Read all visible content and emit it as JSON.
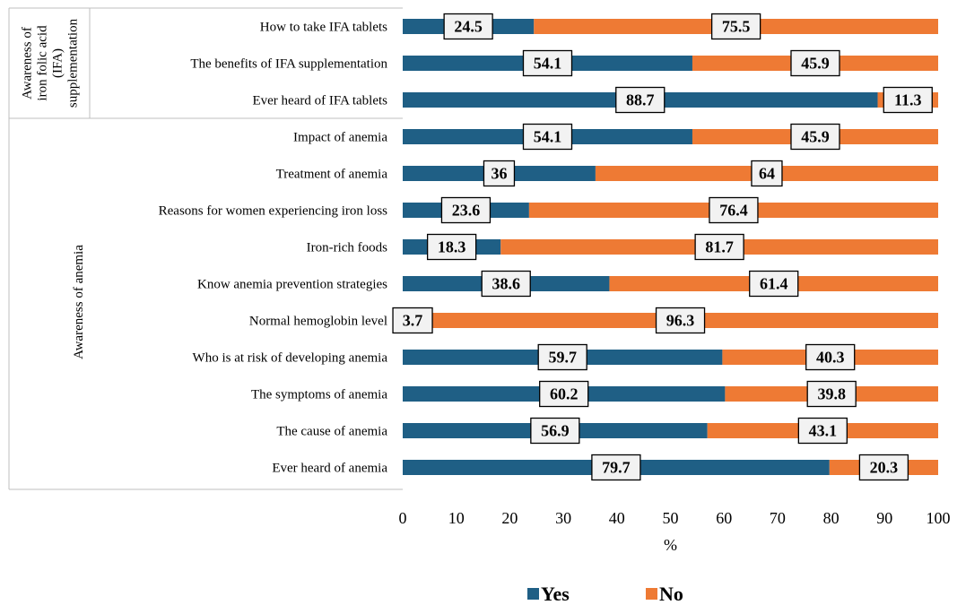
{
  "chart_data": {
    "type": "bar",
    "orientation": "horizontal",
    "stacked": true,
    "title": "",
    "xlabel": "%",
    "xlim": [
      0,
      100
    ],
    "xticks": [
      "0",
      "10",
      "20",
      "30",
      "40",
      "50",
      "60",
      "70",
      "80",
      "90",
      "100"
    ],
    "grid": false,
    "legend_position": "bottom",
    "groups": [
      {
        "label": "Awareness of iron folic acid (IFA) supplementation",
        "lines": [
          "Awareness of",
          "iron folic acid",
          "(IFA)",
          "supplementation"
        ]
      },
      {
        "label": "Awareness of anemia",
        "lines": [
          "Awareness of anemia"
        ]
      }
    ],
    "categories": [
      "How to take IFA tablets",
      "The benefits of IFA supplementation",
      "Ever heard of IFA tablets",
      "Impact of anemia ",
      "Treatment of anemia",
      "Reasons for women experiencing iron loss",
      "Iron-rich foods",
      "Know anemia prevention strategies",
      "Normal hemoglobin level",
      "Who is at risk of developing anemia",
      "The symptoms of anemia ",
      "The cause of anemia",
      "Ever heard of anemia"
    ],
    "series": [
      {
        "name": "Yes",
        "color": "#1f5f85",
        "values": [
          24.5,
          54.1,
          88.7,
          54.1,
          36,
          23.6,
          18.3,
          38.6,
          3.7,
          59.7,
          60.2,
          56.9,
          79.7
        ]
      },
      {
        "name": "No",
        "color": "#ee7a34",
        "values": [
          75.5,
          45.9,
          11.3,
          45.9,
          64,
          76.4,
          81.7,
          61.4,
          96.3,
          40.3,
          39.8,
          43.1,
          20.3
        ]
      }
    ]
  }
}
